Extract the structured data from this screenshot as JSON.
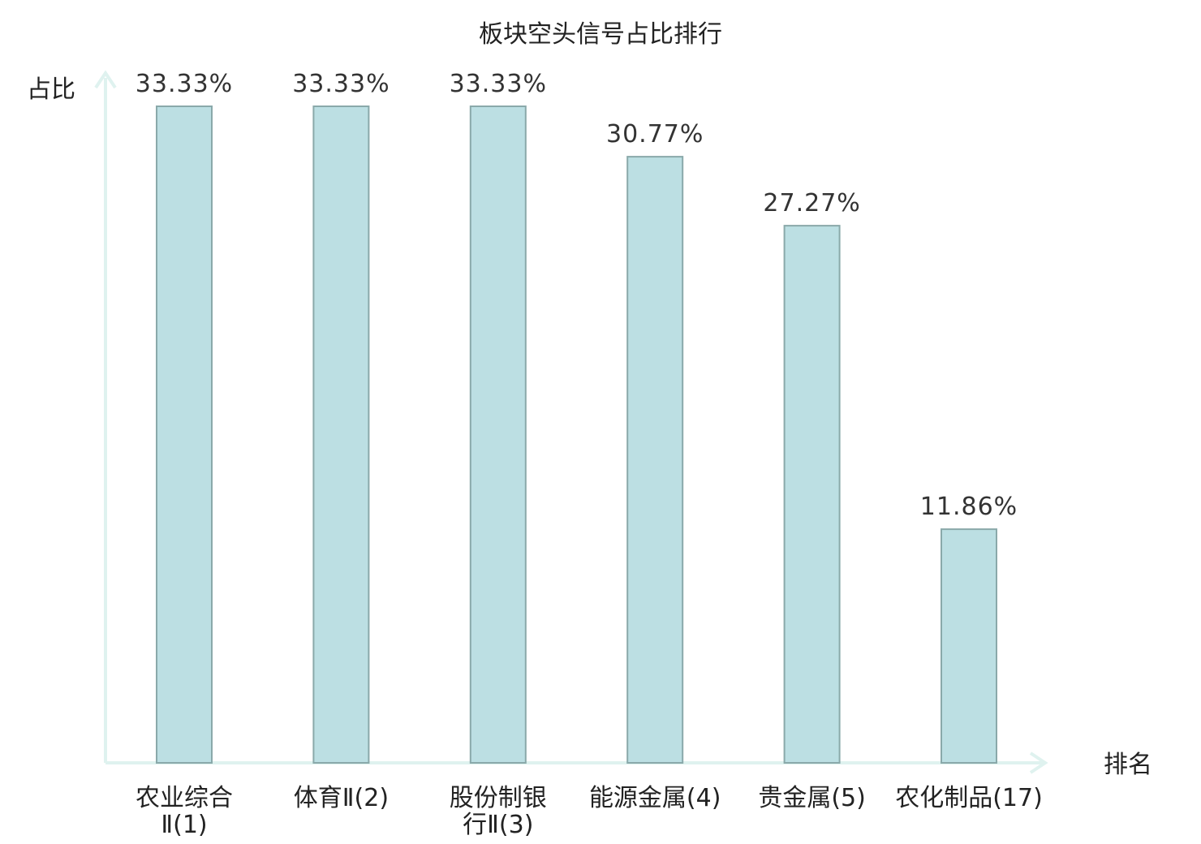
{
  "chart_data": {
    "type": "bar",
    "title": "板块空头信号占比排行",
    "ylabel": "占比",
    "xlabel": "排名",
    "categories": [
      [
        "农业综合",
        "Ⅱ(1)"
      ],
      [
        "体育Ⅱ(2)"
      ],
      [
        "股份制银",
        "行Ⅱ(3)"
      ],
      [
        "能源金属(4)"
      ],
      [
        "贵金属(5)"
      ],
      [
        "农化制品(17)"
      ]
    ],
    "values": [
      33.33,
      33.33,
      33.33,
      30.77,
      27.27,
      11.86
    ],
    "value_labels": [
      "33.33%",
      "33.33%",
      "33.33%",
      "30.77%",
      "27.27%",
      "11.86%"
    ],
    "highlight_index": 5,
    "ylim": [
      0,
      35
    ],
    "grid": false,
    "colors": {
      "bar_fill": "#bcdfe3",
      "bar_stroke": "#8aa9aa",
      "axis": "#dff2ef",
      "highlight_label": "#e00000",
      "text": "#222222"
    }
  }
}
